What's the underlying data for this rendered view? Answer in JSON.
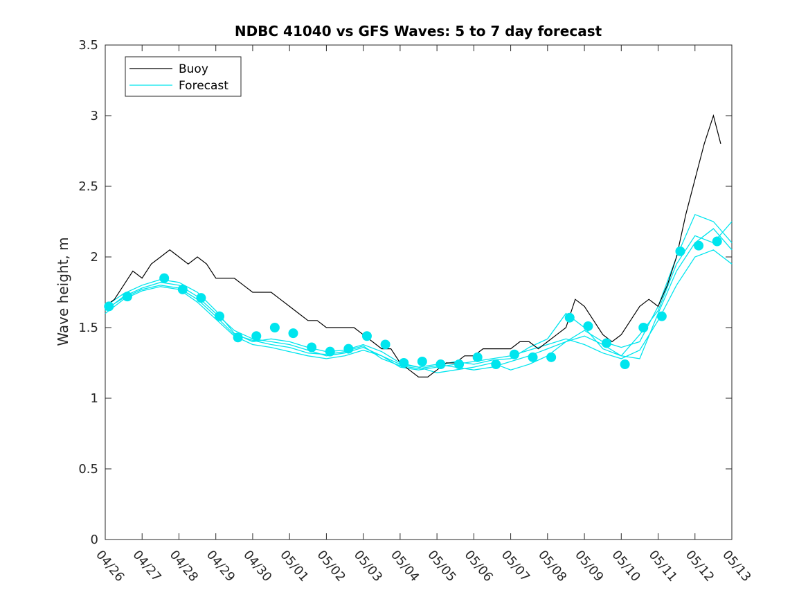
{
  "chart_data": {
    "type": "line",
    "title": "NDBC 41040 vs GFS Waves: 5 to 7 day forecast",
    "xlabel": "",
    "ylabel": "Wave height, m",
    "ylim": [
      0,
      3.5
    ],
    "yticks": [
      0,
      0.5,
      1,
      1.5,
      2,
      2.5,
      3,
      3.5
    ],
    "ytick_labels": [
      "0",
      "0.5",
      "1",
      "1.5",
      "2",
      "2.5",
      "3",
      "3.5"
    ],
    "xlim": [
      0,
      17
    ],
    "xtick_labels": [
      "04/26",
      "04/27",
      "04/28",
      "04/29",
      "04/30",
      "05/01",
      "05/02",
      "05/03",
      "05/04",
      "05/05",
      "05/06",
      "05/07",
      "05/08",
      "05/09",
      "05/10",
      "05/11",
      "05/12",
      "05/13"
    ],
    "x_units": "days since 04/26 00:00",
    "grid": false,
    "legend_position": "top-left",
    "colors": {
      "buoy": "#000000",
      "forecast": "#00e5ee"
    },
    "legend": [
      {
        "label": "Buoy",
        "color": "#000000"
      },
      {
        "label": "Forecast",
        "color": "#00e5ee"
      }
    ],
    "buoy": {
      "name": "Buoy",
      "x": [
        0,
        0.25,
        0.5,
        0.75,
        1,
        1.25,
        1.5,
        1.75,
        2,
        2.25,
        2.5,
        2.75,
        3,
        3.25,
        3.5,
        3.75,
        4,
        4.25,
        4.5,
        4.75,
        5,
        5.25,
        5.5,
        5.75,
        6,
        6.25,
        6.5,
        6.75,
        7,
        7.25,
        7.5,
        7.75,
        8,
        8.25,
        8.5,
        8.75,
        9,
        9.25,
        9.5,
        9.75,
        10,
        10.25,
        10.5,
        10.75,
        11,
        11.25,
        11.5,
        11.75,
        12,
        12.25,
        12.5,
        12.75,
        13,
        13.25,
        13.5,
        13.75,
        14,
        14.25,
        14.5,
        14.75,
        15,
        15.25,
        15.5,
        15.75,
        16,
        16.25,
        16.5,
        16.7
      ],
      "y": [
        1.65,
        1.7,
        1.8,
        1.9,
        1.85,
        1.95,
        2.0,
        2.05,
        2.0,
        1.95,
        2.0,
        1.95,
        1.85,
        1.85,
        1.85,
        1.8,
        1.75,
        1.75,
        1.75,
        1.7,
        1.65,
        1.6,
        1.55,
        1.55,
        1.5,
        1.5,
        1.5,
        1.5,
        1.45,
        1.4,
        1.35,
        1.35,
        1.25,
        1.2,
        1.15,
        1.15,
        1.2,
        1.25,
        1.25,
        1.3,
        1.3,
        1.35,
        1.35,
        1.35,
        1.35,
        1.4,
        1.4,
        1.35,
        1.4,
        1.45,
        1.5,
        1.7,
        1.65,
        1.55,
        1.45,
        1.4,
        1.45,
        1.55,
        1.65,
        1.7,
        1.65,
        1.8,
        2.0,
        2.3,
        2.55,
        2.8,
        3.0,
        2.8
      ]
    },
    "forecast_markers": {
      "name": "Forecast",
      "x": [
        0.1,
        0.6,
        1.6,
        2.1,
        2.6,
        3.1,
        3.6,
        4.1,
        4.6,
        5.1,
        5.6,
        6.1,
        6.6,
        7.1,
        7.6,
        8.1,
        8.6,
        9.1,
        9.6,
        10.1,
        10.6,
        11.1,
        11.6,
        12.1,
        12.6,
        13.1,
        13.6,
        14.1,
        14.6,
        15.1,
        15.6,
        16.1,
        16.6
      ],
      "y": [
        1.65,
        1.72,
        1.85,
        1.77,
        1.71,
        1.58,
        1.43,
        1.44,
        1.5,
        1.46,
        1.36,
        1.33,
        1.35,
        1.44,
        1.38,
        1.25,
        1.26,
        1.24,
        1.24,
        1.29,
        1.24,
        1.31,
        1.29,
        1.29,
        1.57,
        1.51,
        1.39,
        1.24,
        1.5,
        1.58,
        2.04,
        2.08,
        2.11
      ]
    },
    "forecast_runs": [
      {
        "x": [
          0,
          0.5,
          1,
          1.5,
          2,
          2.5,
          3,
          3.5,
          4,
          4.5,
          5,
          5.5,
          6,
          6.5,
          7,
          7.5,
          8,
          8.5,
          9,
          9.5,
          10,
          10.5,
          11,
          11.5,
          12,
          12.5,
          13,
          13.5,
          14,
          14.5,
          15,
          15.5,
          16,
          16.5,
          17
        ],
        "y": [
          1.62,
          1.72,
          1.78,
          1.82,
          1.8,
          1.72,
          1.6,
          1.48,
          1.42,
          1.4,
          1.38,
          1.34,
          1.3,
          1.32,
          1.36,
          1.3,
          1.22,
          1.2,
          1.22,
          1.24,
          1.26,
          1.28,
          1.3,
          1.34,
          1.38,
          1.42,
          1.38,
          1.32,
          1.28,
          1.34,
          1.55,
          1.8,
          2.0,
          2.05,
          1.95
        ]
      },
      {
        "x": [
          0,
          0.5,
          1,
          1.5,
          2,
          2.5,
          3,
          3.5,
          4,
          4.5,
          5,
          5.5,
          6,
          6.5,
          7,
          7.5,
          8,
          8.5,
          9,
          9.5,
          10,
          10.5,
          11,
          11.5,
          12,
          12.5,
          13,
          13.5,
          14,
          14.5,
          15,
          15.5,
          16,
          16.5,
          17
        ],
        "y": [
          1.65,
          1.74,
          1.8,
          1.84,
          1.82,
          1.75,
          1.62,
          1.46,
          1.4,
          1.42,
          1.4,
          1.36,
          1.33,
          1.34,
          1.38,
          1.33,
          1.25,
          1.22,
          1.24,
          1.22,
          1.2,
          1.22,
          1.26,
          1.3,
          1.35,
          1.4,
          1.44,
          1.38,
          1.3,
          1.28,
          1.6,
          1.9,
          2.1,
          2.2,
          2.05
        ]
      },
      {
        "x": [
          0,
          0.5,
          1,
          1.5,
          2,
          2.5,
          3,
          3.5,
          4,
          4.5,
          5,
          5.5,
          6,
          6.5,
          7,
          7.5,
          8,
          8.5,
          9,
          9.5,
          10,
          10.5,
          11,
          11.5,
          12,
          12.5,
          13,
          13.5,
          14,
          14.5,
          15,
          15.5,
          16,
          16.5,
          17
        ],
        "y": [
          1.6,
          1.7,
          1.76,
          1.79,
          1.77,
          1.68,
          1.56,
          1.44,
          1.38,
          1.36,
          1.33,
          1.3,
          1.28,
          1.3,
          1.34,
          1.3,
          1.24,
          1.22,
          1.18,
          1.2,
          1.22,
          1.25,
          1.2,
          1.24,
          1.3,
          1.4,
          1.48,
          1.4,
          1.36,
          1.4,
          1.65,
          2.0,
          2.3,
          2.25,
          2.1
        ]
      },
      {
        "x": [
          0,
          0.5,
          1,
          1.5,
          2,
          2.5,
          3,
          3.5,
          4,
          4.5,
          5,
          5.5,
          6,
          6.5,
          7,
          7.5,
          8,
          8.5,
          9,
          9.5,
          10,
          10.5,
          11,
          11.5,
          12,
          12.5,
          13,
          13.5,
          14,
          14.5,
          15,
          15.5,
          16,
          16.5,
          17
        ],
        "y": [
          1.63,
          1.71,
          1.77,
          1.8,
          1.78,
          1.7,
          1.58,
          1.45,
          1.41,
          1.38,
          1.36,
          1.32,
          1.31,
          1.33,
          1.37,
          1.28,
          1.23,
          1.21,
          1.23,
          1.26,
          1.24,
          1.27,
          1.28,
          1.36,
          1.42,
          1.6,
          1.5,
          1.35,
          1.3,
          1.45,
          1.62,
          1.95,
          2.15,
          2.1,
          2.25
        ]
      }
    ]
  }
}
